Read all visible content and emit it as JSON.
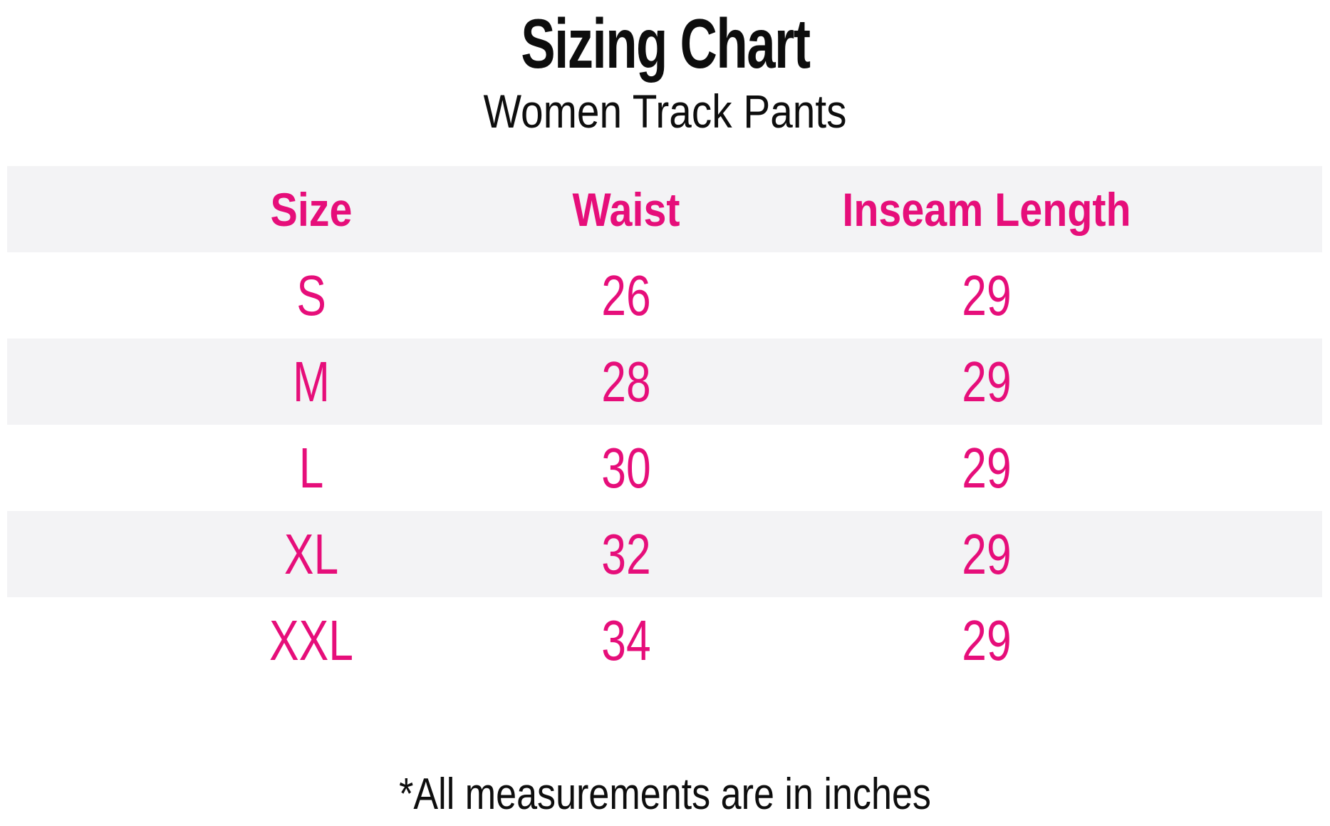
{
  "title": "Sizing Chart",
  "subtitle": "Women Track Pants",
  "table": {
    "headers": [
      "Size",
      "Waist",
      "Inseam Length"
    ],
    "rows": [
      [
        "S",
        "26",
        "29"
      ],
      [
        "M",
        "28",
        "29"
      ],
      [
        "L",
        "30",
        "29"
      ],
      [
        "XL",
        "32",
        "29"
      ],
      [
        "XXL",
        "34",
        "29"
      ]
    ]
  },
  "footnote": "*All measurements are in inches",
  "colors": {
    "accent_pink": "#e60e7a",
    "stripe_gray": "#f3f3f5",
    "text_black": "#0d0d0d",
    "background": "#ffffff"
  },
  "chart_data": {
    "type": "table",
    "title": "Sizing Chart",
    "subtitle": "Women Track Pants",
    "columns": [
      "Size",
      "Waist",
      "Inseam Length"
    ],
    "rows": [
      [
        "S",
        26,
        29
      ],
      [
        "M",
        28,
        29
      ],
      [
        "L",
        30,
        29
      ],
      [
        "XL",
        32,
        29
      ],
      [
        "XXL",
        34,
        29
      ]
    ],
    "note": "*All measurements are in inches",
    "units": "inches",
    "layout_hints": {
      "striped_rows": true,
      "stripe_color": "#f3f3f5",
      "text_color": "#e60e7a",
      "header_in_gray_band": true
    }
  }
}
